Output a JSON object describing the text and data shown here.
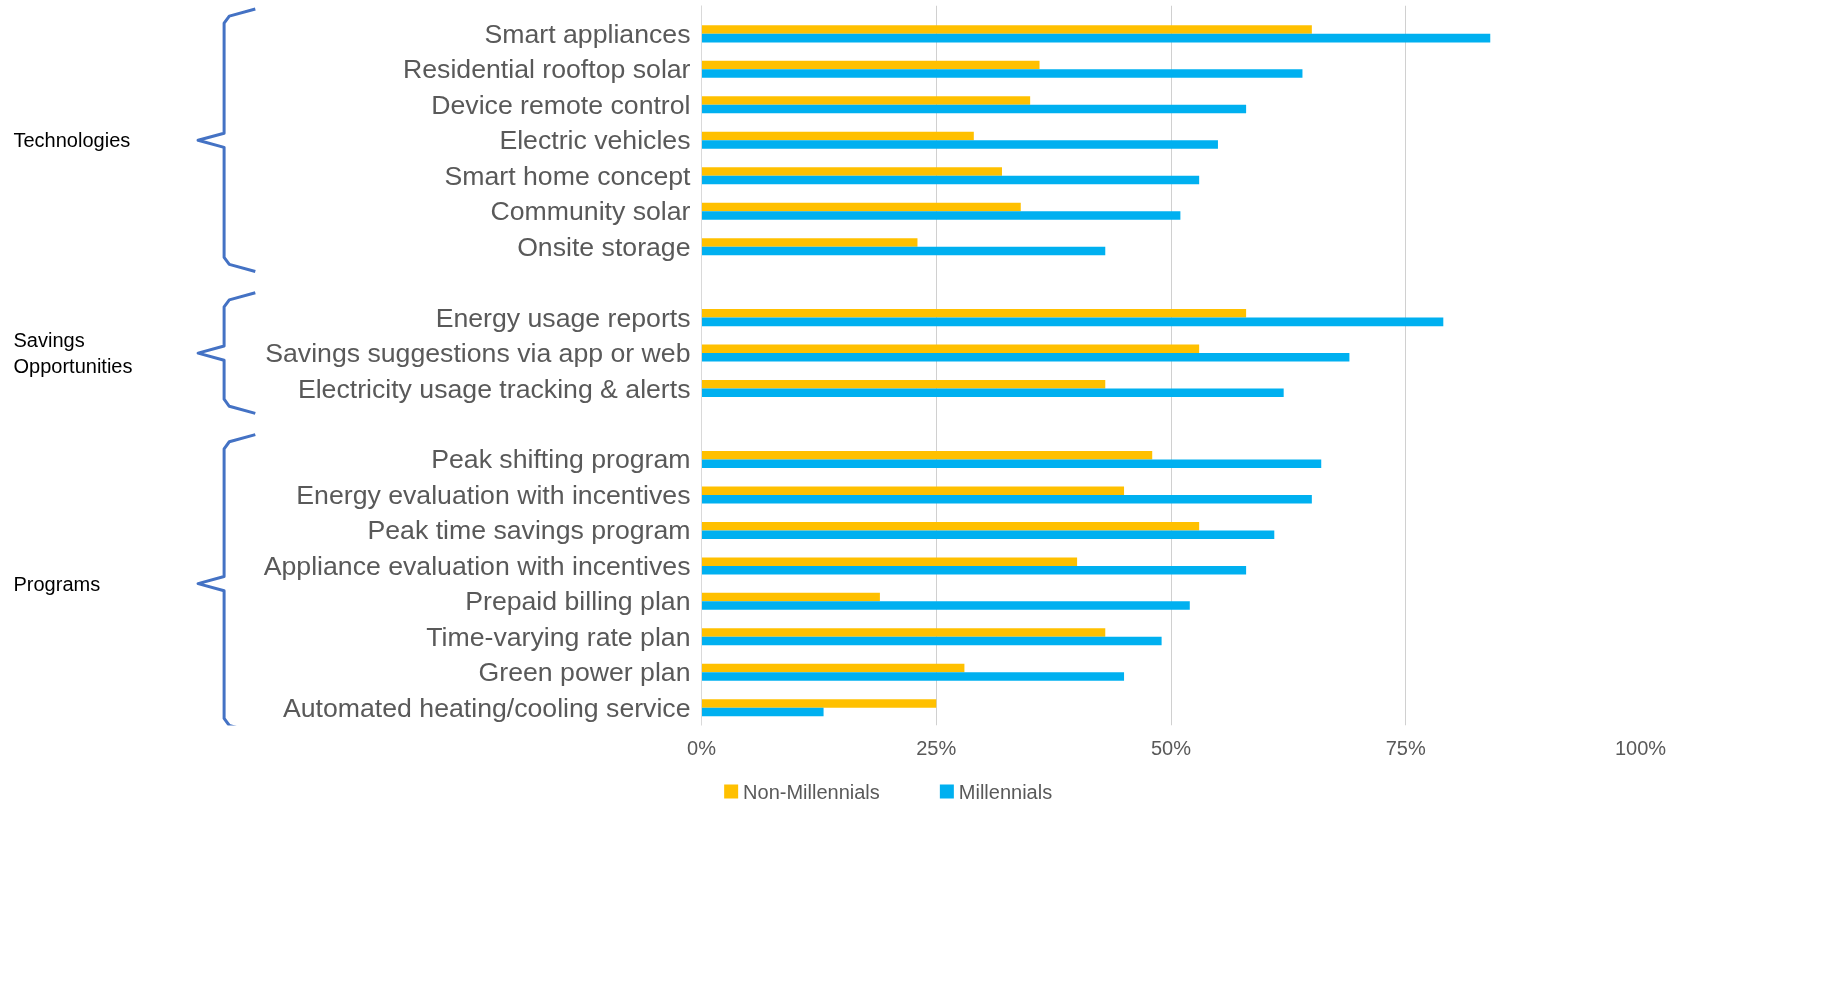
{
  "chart_data": {
    "type": "bar",
    "orientation": "horizontal",
    "categories": [
      "Smart appliances",
      "Residential rooftop solar",
      "Device remote control",
      "Electric vehicles",
      "Smart home concept",
      "Community solar",
      "Onsite storage",
      null,
      "Energy usage reports",
      "Savings suggestions via app or web",
      "Electricity usage tracking & alerts",
      null,
      "Peak shifting program",
      "Energy evaluation with incentives",
      "Peak time savings program",
      "Appliance evaluation with incentives",
      "Prepaid billing plan",
      "Time-varying rate plan",
      "Green power plan",
      "Automated heating/cooling service"
    ],
    "series": [
      {
        "name": "Non-Millennials",
        "color": "#ffc000",
        "values": [
          65,
          36,
          35,
          29,
          32,
          34,
          23,
          null,
          58,
          53,
          43,
          null,
          48,
          45,
          53,
          40,
          19,
          43,
          28,
          25
        ]
      },
      {
        "name": "Millennials",
        "color": "#00b0f0",
        "values": [
          84,
          64,
          58,
          55,
          53,
          51,
          43,
          null,
          79,
          69,
          62,
          null,
          66,
          65,
          61,
          58,
          52,
          49,
          45,
          13
        ]
      }
    ],
    "xlim": [
      0,
      100
    ],
    "xticks": [
      {
        "value": 0,
        "label": "0%"
      },
      {
        "value": 25,
        "label": "25%"
      },
      {
        "value": 50,
        "label": "50%"
      },
      {
        "value": 75,
        "label": "75%"
      },
      {
        "value": 100,
        "label": "100%"
      }
    ],
    "annotations": [
      "Technologies",
      "Savings\nOpportunities",
      "Programs"
    ],
    "grid": "x",
    "legend": "bottom"
  }
}
